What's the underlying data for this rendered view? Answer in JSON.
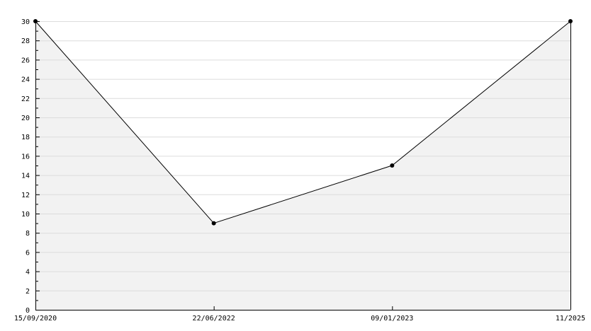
{
  "chart_data": {
    "type": "area",
    "x": [
      "15/09/2020",
      "22/06/2022",
      "09/01/2023",
      "11/2025"
    ],
    "series": [
      {
        "values": [
          30,
          9,
          15,
          30
        ]
      }
    ],
    "ylim": [
      0,
      30
    ],
    "yticks": [
      0,
      2,
      4,
      6,
      8,
      10,
      12,
      14,
      16,
      18,
      20,
      22,
      24,
      26,
      28,
      30
    ],
    "grid": true,
    "colors": {
      "fill": "#f2f2f2",
      "line": "#000000",
      "grid": "#dcdcdc",
      "axis": "#000000"
    },
    "title": "",
    "xlabel": "",
    "ylabel": ""
  }
}
